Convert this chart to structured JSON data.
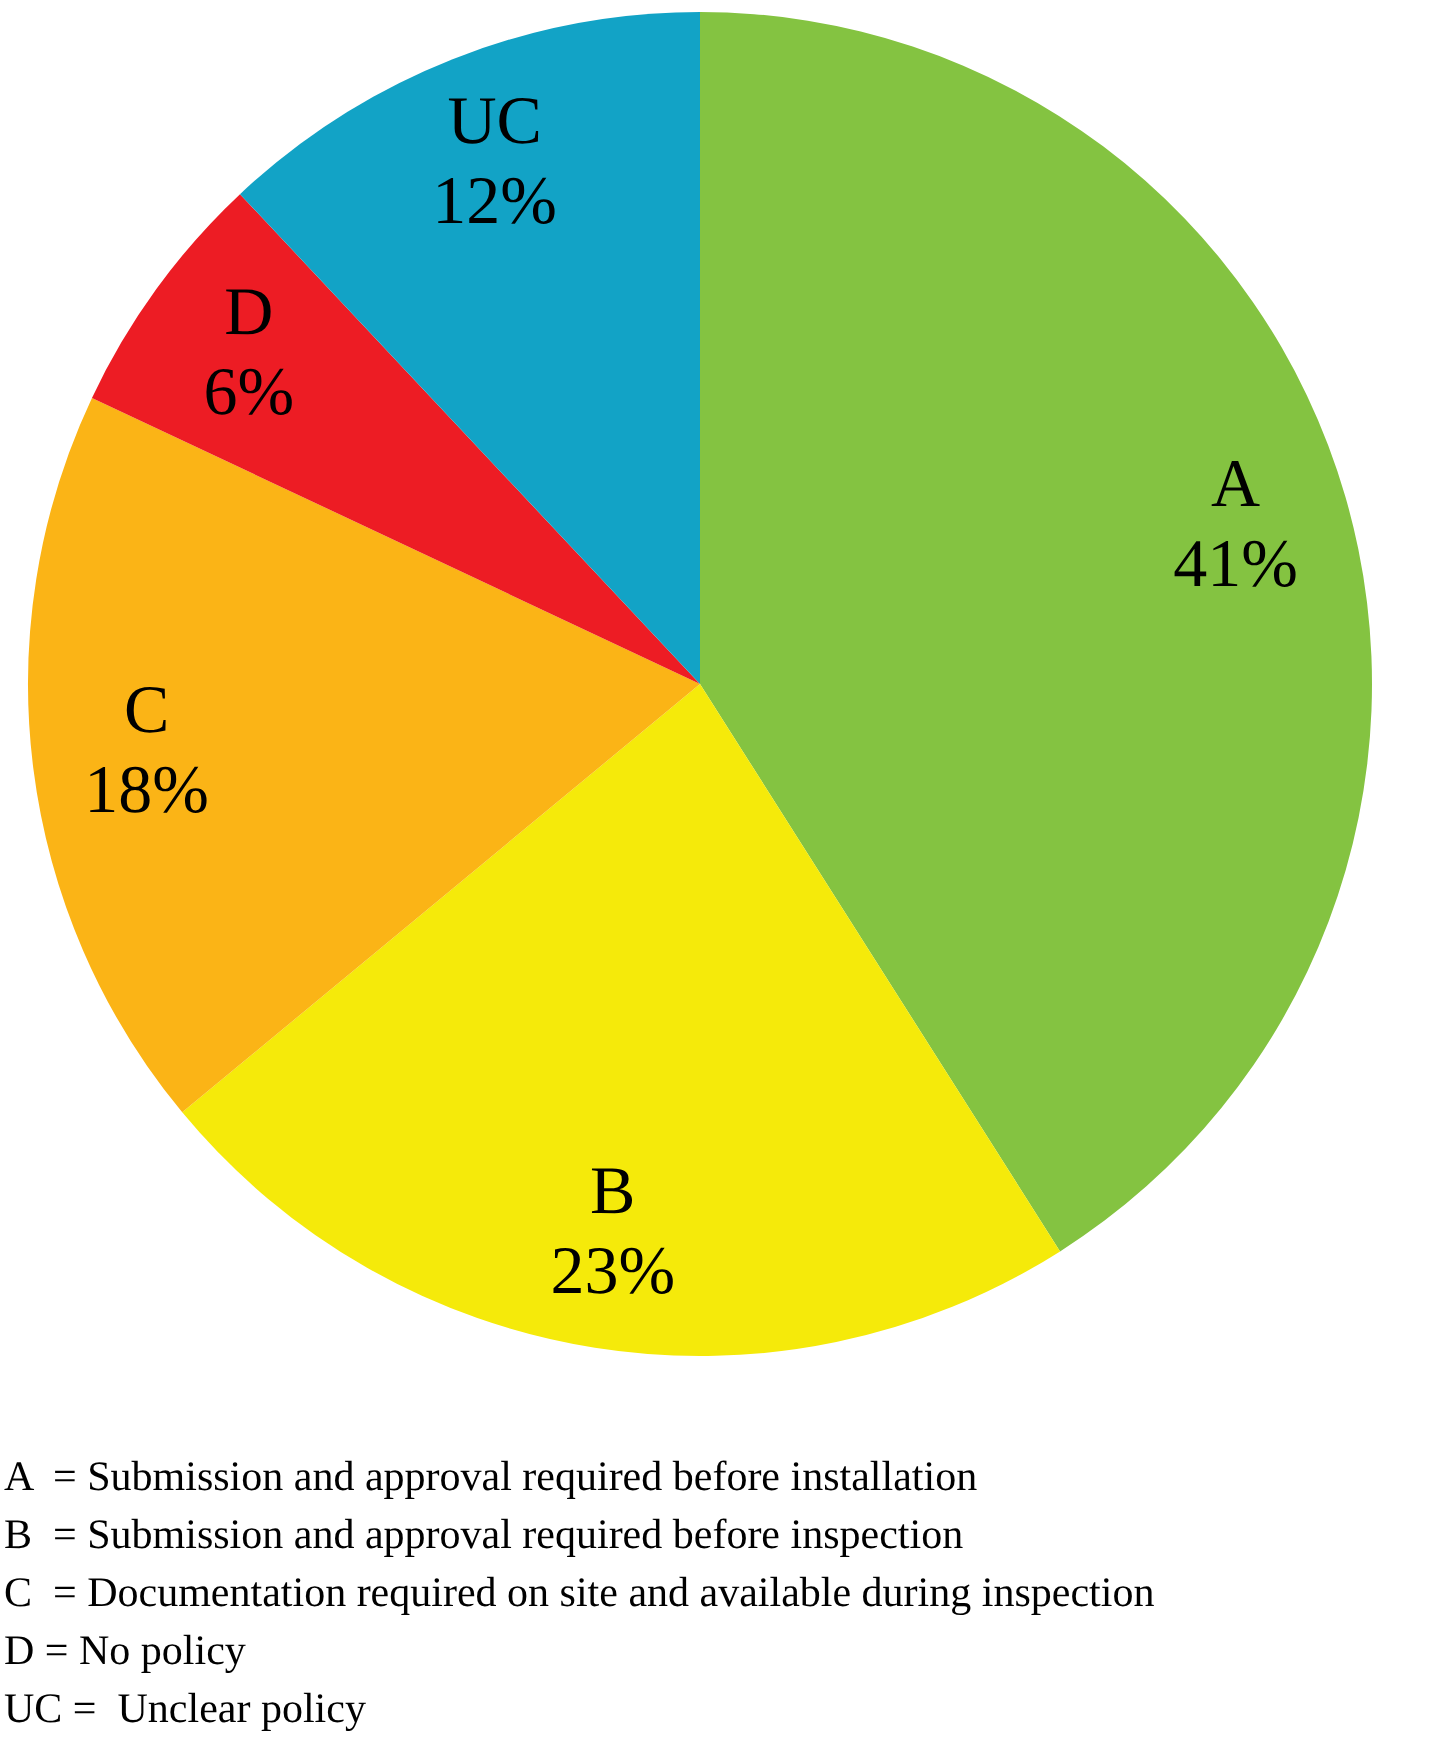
{
  "chart_data": {
    "type": "pie",
    "categories": [
      "A",
      "B",
      "C",
      "D",
      "UC"
    ],
    "values": [
      41,
      23,
      18,
      6,
      12
    ],
    "value_labels": [
      "41%",
      "23%",
      "18%",
      "6%",
      "12%"
    ],
    "colors": [
      "#84c341",
      "#f5ea0a",
      "#fbb416",
      "#ed1c24",
      "#12a3c6"
    ],
    "legend": false,
    "annotations": [
      "A  = Submission and approval required before installation",
      "B  = Submission and approval required before inspection",
      "C  = Documentation required on site and available during inspection",
      "D = No policy",
      "UC =  Unclear policy"
    ]
  }
}
